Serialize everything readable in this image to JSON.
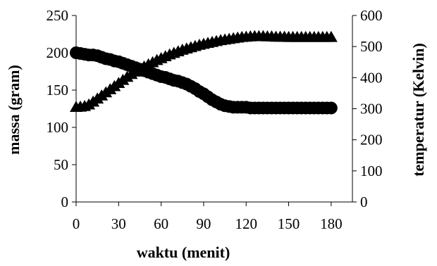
{
  "chart_data": {
    "type": "scatter",
    "xlabel": "waktu (menit)",
    "ylabel_left": "massa (gram)",
    "ylabel_right": "temperatur (Kelvin)",
    "x_ticks": [
      0,
      30,
      60,
      90,
      120,
      150,
      180
    ],
    "y_left_ticks": [
      0,
      50,
      100,
      150,
      200,
      250
    ],
    "y_right_ticks": [
      0,
      100,
      200,
      300,
      400,
      500,
      600
    ],
    "xlim": [
      0,
      195
    ],
    "ylim_left": [
      0,
      250
    ],
    "ylim_right": [
      0,
      600
    ],
    "grid": false,
    "legend": "none",
    "series": [
      {
        "axis": "left",
        "marker": "circle",
        "color": "#000000",
        "points": [
          [
            0,
            200
          ],
          [
            3,
            199
          ],
          [
            6,
            198
          ],
          [
            9,
            197
          ],
          [
            12,
            197
          ],
          [
            15,
            196
          ],
          [
            18,
            194
          ],
          [
            21,
            192
          ],
          [
            24,
            191
          ],
          [
            27,
            189
          ],
          [
            30,
            188
          ],
          [
            33,
            186
          ],
          [
            36,
            184
          ],
          [
            39,
            182
          ],
          [
            42,
            180
          ],
          [
            45,
            178
          ],
          [
            48,
            176
          ],
          [
            51,
            174
          ],
          [
            54,
            172
          ],
          [
            57,
            170
          ],
          [
            60,
            168
          ],
          [
            63,
            167
          ],
          [
            66,
            165
          ],
          [
            69,
            163
          ],
          [
            72,
            162
          ],
          [
            75,
            160
          ],
          [
            78,
            158
          ],
          [
            81,
            155
          ],
          [
            84,
            152
          ],
          [
            87,
            148
          ],
          [
            90,
            145
          ],
          [
            93,
            141
          ],
          [
            96,
            137
          ],
          [
            99,
            134
          ],
          [
            102,
            131
          ],
          [
            105,
            129
          ],
          [
            108,
            128
          ],
          [
            111,
            127
          ],
          [
            114,
            127
          ],
          [
            117,
            127
          ],
          [
            120,
            127
          ],
          [
            123,
            126
          ],
          [
            126,
            126
          ],
          [
            129,
            126
          ],
          [
            132,
            126
          ],
          [
            135,
            126
          ],
          [
            138,
            126
          ],
          [
            141,
            126
          ],
          [
            144,
            126
          ],
          [
            147,
            126
          ],
          [
            150,
            126
          ],
          [
            153,
            126
          ],
          [
            156,
            126
          ],
          [
            159,
            126
          ],
          [
            162,
            126
          ],
          [
            165,
            126
          ],
          [
            168,
            126
          ],
          [
            171,
            126
          ],
          [
            174,
            126
          ],
          [
            177,
            126
          ],
          [
            180,
            126
          ]
        ]
      },
      {
        "axis": "right",
        "marker": "triangle",
        "color": "#000000",
        "points": [
          [
            0,
            305
          ],
          [
            3,
            306
          ],
          [
            6,
            308
          ],
          [
            9,
            313
          ],
          [
            12,
            322
          ],
          [
            15,
            332
          ],
          [
            18,
            342
          ],
          [
            21,
            352
          ],
          [
            24,
            362
          ],
          [
            27,
            372
          ],
          [
            30,
            382
          ],
          [
            33,
            392
          ],
          [
            36,
            402
          ],
          [
            39,
            411
          ],
          [
            42,
            419
          ],
          [
            45,
            427
          ],
          [
            48,
            435
          ],
          [
            51,
            442
          ],
          [
            54,
            449
          ],
          [
            57,
            456
          ],
          [
            60,
            462
          ],
          [
            63,
            468
          ],
          [
            66,
            474
          ],
          [
            69,
            479
          ],
          [
            72,
            484
          ],
          [
            75,
            489
          ],
          [
            78,
            493
          ],
          [
            81,
            497
          ],
          [
            84,
            501
          ],
          [
            87,
            505
          ],
          [
            90,
            508
          ],
          [
            93,
            511
          ],
          [
            96,
            514
          ],
          [
            99,
            517
          ],
          [
            102,
            520
          ],
          [
            105,
            522
          ],
          [
            108,
            524
          ],
          [
            111,
            526
          ],
          [
            114,
            528
          ],
          [
            117,
            530
          ],
          [
            120,
            531
          ],
          [
            123,
            532
          ],
          [
            126,
            533
          ],
          [
            129,
            533
          ],
          [
            132,
            533
          ],
          [
            135,
            532
          ],
          [
            138,
            532
          ],
          [
            141,
            531
          ],
          [
            144,
            531
          ],
          [
            147,
            531
          ],
          [
            150,
            530
          ],
          [
            153,
            530
          ],
          [
            156,
            530
          ],
          [
            159,
            530
          ],
          [
            162,
            530
          ],
          [
            165,
            530
          ],
          [
            168,
            530
          ],
          [
            171,
            530
          ],
          [
            174,
            530
          ],
          [
            177,
            530
          ],
          [
            180,
            530
          ]
        ]
      }
    ]
  }
}
